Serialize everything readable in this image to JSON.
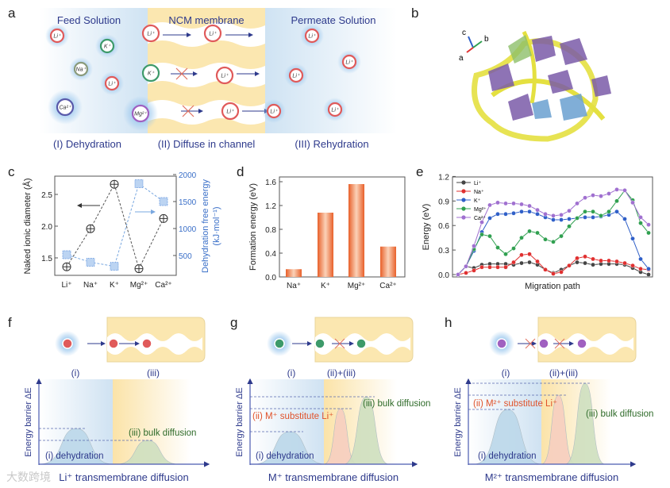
{
  "panel_labels": {
    "a": "a",
    "b": "b",
    "c": "c",
    "d": "d",
    "e": "e",
    "f": "f",
    "g": "g",
    "h": "h"
  },
  "panel_a": {
    "feed_title": "Feed Solution",
    "membrane_title": "NCM membrane",
    "permeate_title": "Permeate Solution",
    "step1": "(I) Dehydration",
    "step2": "(II) Diffuse in channel",
    "step3": "(III) Rehydration",
    "ions": {
      "li": "Li⁺",
      "k": "K⁺",
      "na": "Na⁺",
      "ca": "Ca²⁺",
      "mg": "Mg²⁺"
    }
  },
  "panel_b": {
    "axes": {
      "a": "a",
      "b": "b",
      "c": "c"
    }
  },
  "colors": {
    "navy": "#2e3a8c",
    "li": "#e05a5a",
    "k": "#3d9a6a",
    "na": "#8a9a7a",
    "ca": "#5a5aaa",
    "mg": "#a060c0",
    "bar": "#e8703a",
    "membrane": "#fbe7b0",
    "halo": "#9cc8ee",
    "green_text": "#2f6b2a",
    "red_text": "#e0522a"
  },
  "chart_data": [
    {
      "panel": "c",
      "type": "scatter",
      "categories": [
        "Li⁺",
        "Na⁺",
        "K⁺",
        "Mg²⁺",
        "Ca²⁺"
      ],
      "series": [
        {
          "name": "Naked ionic diameter",
          "axis": "left",
          "values": [
            1.36,
            1.96,
            2.66,
            1.33,
            2.12
          ]
        },
        {
          "name": "Dehydration free energy",
          "axis": "right",
          "values": [
            515,
            375,
            300,
            1830,
            1500
          ]
        }
      ],
      "ylabel": "Naked ionic diameter (Å)",
      "ylabel_right": "Dehydration free energy",
      "ylabel_right_unit": "(kJ·mol⁻¹)",
      "ylim": [
        1.2,
        2.78
      ],
      "ylim_right": [
        200,
        2000
      ],
      "yticks": [
        "1.5",
        "2.0",
        "2.5"
      ],
      "yticks_right": [
        "500",
        "1000",
        "1500",
        "2000"
      ]
    },
    {
      "panel": "d",
      "type": "bar",
      "categories": [
        "Na⁺",
        "K⁺",
        "Mg²⁺",
        "Ca²⁺"
      ],
      "values": [
        0.13,
        1.08,
        1.56,
        0.51
      ],
      "ylabel": "Formation energy (eV)",
      "ylim": [
        0,
        1.7
      ],
      "yticks": [
        "0.0",
        "0.4",
        "0.8",
        "1.2",
        "1.6"
      ]
    },
    {
      "panel": "e",
      "type": "line",
      "xlabel": "Migration path",
      "ylabel": "Energy (eV)",
      "ylim": [
        0,
        1.2
      ],
      "yticks": [
        "0.0",
        "0.3",
        "0.6",
        "0.9",
        "1.2"
      ],
      "legend_position": "top-left",
      "series": [
        {
          "name": "Li⁺",
          "color": "#444444",
          "values": [
            0,
            0.1,
            0.08,
            0.12,
            0.13,
            0.13,
            0.13,
            0.12,
            0.14,
            0.15,
            0.12,
            0.06,
            0.02,
            0.06,
            0.11,
            0.15,
            0.14,
            0.12,
            0.13,
            0.13,
            0.13,
            0.12,
            0.08,
            0.03,
            0.0
          ]
        },
        {
          "name": "Na⁺",
          "color": "#e03030",
          "values": [
            0,
            0.02,
            0.05,
            0.09,
            0.09,
            0.09,
            0.09,
            0.15,
            0.24,
            0.25,
            0.16,
            0.06,
            0.01,
            0.03,
            0.11,
            0.2,
            0.22,
            0.19,
            0.17,
            0.17,
            0.16,
            0.14,
            0.11,
            0.07,
            0.06
          ]
        },
        {
          "name": "K⁺",
          "color": "#2f5fc8",
          "values": [
            0,
            0.1,
            0.29,
            0.52,
            0.69,
            0.74,
            0.74,
            0.75,
            0.77,
            0.77,
            0.74,
            0.7,
            0.67,
            0.67,
            0.68,
            0.69,
            0.7,
            0.7,
            0.71,
            0.73,
            0.77,
            0.68,
            0.44,
            0.19,
            0.07
          ]
        },
        {
          "name": "Mg²⁺",
          "color": "#30a050",
          "values": [
            0,
            0.1,
            0.31,
            0.49,
            0.47,
            0.33,
            0.25,
            0.32,
            0.45,
            0.53,
            0.51,
            0.43,
            0.4,
            0.47,
            0.59,
            0.69,
            0.77,
            0.77,
            0.72,
            0.77,
            0.9,
            1.03,
            0.91,
            0.63,
            0.51
          ]
        },
        {
          "name": "Ca²⁺",
          "color": "#a070d0",
          "values": [
            0,
            0.1,
            0.35,
            0.64,
            0.85,
            0.88,
            0.87,
            0.87,
            0.86,
            0.84,
            0.79,
            0.74,
            0.72,
            0.73,
            0.78,
            0.87,
            0.94,
            0.97,
            0.96,
            0.99,
            1.04,
            1.03,
            0.88,
            0.7,
            0.61
          ]
        }
      ]
    }
  ],
  "panel_f": {
    "step_i": "(i)",
    "step_iii": "(iii)",
    "ylabel": "Energy barrier ΔE",
    "bulk": "(iii) bulk diffusion",
    "dehydration": "(i) dehydration",
    "xlabel": "Li⁺ transmembrane diffusion"
  },
  "panel_g": {
    "step_i": "(i)",
    "step_ii_iii": "(ii)+(iii)",
    "ylabel": "Energy barrier ΔE",
    "substitute": "(ii) M⁺ substitute Li⁺",
    "bulk": "(iii) bulk diffusion",
    "dehydration": "(i) dehydration",
    "xlabel": "M⁺ transmembrane diffusion"
  },
  "panel_h": {
    "step_i": "(i)",
    "step_ii_iii": "(ii)+(iii)",
    "ylabel": "Energy barrier ΔE",
    "substitute": "(ii) M²⁺ substitute Li⁺",
    "bulk": "(iii) bulk diffusion",
    "dehydration": "(i) dehydration",
    "xlabel": "M²⁺ transmembrane diffusion"
  },
  "watermark": "大数跨境"
}
